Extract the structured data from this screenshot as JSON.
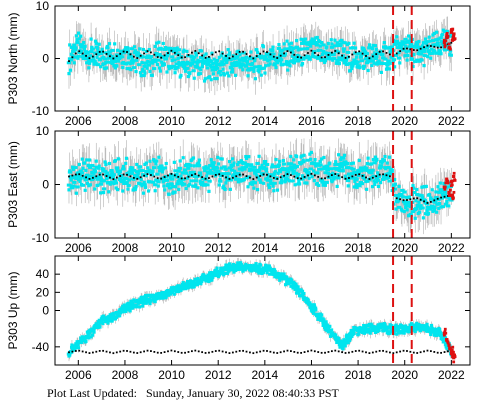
{
  "footer": {
    "label": "Plot Last Updated:",
    "timestamp": "Sunday, January 30, 2022 08:40:33 PST"
  },
  "colors": {
    "data": "#00e5ee",
    "error_bars": "#b0b0b0",
    "model": "#000000",
    "recent": "#dd1111",
    "event_lines": "#dd1111"
  },
  "chart_data": [
    {
      "type": "scatter",
      "ylabel": "P303 North (mm)",
      "xlim": [
        2005.0,
        2022.8
      ],
      "ylim": [
        -10,
        10
      ],
      "xticks": [
        2006,
        2008,
        2010,
        2012,
        2014,
        2016,
        2018,
        2020,
        2022
      ],
      "yticks": [
        -10,
        0,
        10
      ],
      "event_lines": [
        2019.5,
        2020.3
      ],
      "series": [
        {
          "x": [
            2005.6,
            2006.0,
            2006.5,
            2007.0,
            2007.5,
            2008.0,
            2008.5,
            2009.0,
            2009.5,
            2010.0,
            2010.5,
            2011.0,
            2011.5,
            2012.0,
            2012.5,
            2013.0,
            2013.5,
            2014.0,
            2014.5,
            2015.0,
            2015.5,
            2016.0,
            2016.5,
            2017.0,
            2017.5,
            2018.0,
            2018.5,
            2019.0,
            2019.5,
            2020.0,
            2020.5,
            2021.0,
            2021.5,
            2022.0
          ],
          "y": [
            0.0,
            2.0,
            1.0,
            0.0,
            1.0,
            1.0,
            -0.5,
            -1.0,
            0.5,
            0.0,
            -1.0,
            -1.0,
            -1.5,
            -2.0,
            -1.0,
            -0.5,
            -1.5,
            0.0,
            0.5,
            0.5,
            1.0,
            1.5,
            1.0,
            1.5,
            0.5,
            0.0,
            0.5,
            0.0,
            1.0,
            2.0,
            1.0,
            1.5,
            2.5,
            3.0
          ],
          "err": 3.2
        },
        {
          "x": [
            2005.6,
            2006.0,
            2006.5,
            2007.0,
            2007.5,
            2008.0,
            2008.5,
            2009.0,
            2009.5,
            2010.0,
            2010.5,
            2011.0,
            2011.5,
            2012.0,
            2012.5,
            2013.0,
            2013.5,
            2014.0,
            2014.5,
            2015.0,
            2015.5,
            2016.0,
            2016.5,
            2017.0,
            2017.5,
            2018.0,
            2018.5,
            2019.0,
            2019.5,
            2020.0,
            2020.5,
            2021.0,
            2021.5,
            2022.0
          ],
          "y": [
            -0.5,
            1.5,
            0.0,
            1.5,
            0.0,
            1.5,
            0.0,
            1.5,
            0.0,
            1.5,
            0.0,
            1.5,
            0.0,
            1.5,
            0.0,
            1.5,
            0.0,
            1.5,
            0.0,
            1.5,
            0.0,
            1.5,
            0.0,
            1.5,
            0.0,
            1.5,
            0.0,
            1.5,
            0.5,
            2.0,
            1.5,
            2.5,
            2.0,
            3.0
          ]
        },
        {
          "x": [
            2021.7,
            2021.8,
            2021.9,
            2022.0,
            2022.05,
            2022.1
          ],
          "y": [
            3.0,
            4.0,
            2.0,
            5.0,
            3.5,
            4.5
          ]
        }
      ]
    },
    {
      "type": "scatter",
      "ylabel": "P303 East (mm)",
      "xlim": [
        2005.0,
        2022.8
      ],
      "ylim": [
        -10,
        10
      ],
      "xticks": [
        2006,
        2008,
        2010,
        2012,
        2014,
        2016,
        2018,
        2020,
        2022
      ],
      "yticks": [
        -10,
        0,
        10
      ],
      "event_lines": [
        2019.5,
        2020.3
      ],
      "series": [
        {
          "x": [
            2005.6,
            2006.0,
            2006.5,
            2007.0,
            2007.5,
            2008.0,
            2008.5,
            2009.0,
            2009.5,
            2010.0,
            2010.5,
            2011.0,
            2011.5,
            2012.0,
            2012.5,
            2013.0,
            2013.5,
            2014.0,
            2014.5,
            2015.0,
            2015.5,
            2016.0,
            2016.5,
            2017.0,
            2017.5,
            2018.0,
            2018.5,
            2019.0,
            2019.4,
            2019.6,
            2020.0,
            2020.5,
            2021.0,
            2021.5,
            2022.0
          ],
          "y": [
            1.0,
            1.5,
            2.0,
            1.0,
            1.5,
            2.0,
            1.0,
            1.5,
            2.0,
            1.0,
            2.0,
            2.0,
            1.5,
            2.5,
            1.5,
            2.5,
            2.0,
            2.5,
            1.5,
            2.5,
            2.5,
            3.0,
            2.0,
            2.5,
            2.5,
            1.5,
            2.0,
            2.5,
            2.0,
            -2.5,
            -3.0,
            -3.5,
            -3.0,
            -2.5,
            -2.0
          ],
          "err": 3.5
        },
        {
          "x": [
            2005.6,
            2006.0,
            2006.5,
            2007.0,
            2007.5,
            2008.0,
            2008.5,
            2009.0,
            2009.5,
            2010.0,
            2010.5,
            2011.0,
            2011.5,
            2012.0,
            2012.5,
            2013.0,
            2013.5,
            2014.0,
            2014.5,
            2015.0,
            2015.5,
            2016.0,
            2016.5,
            2017.0,
            2017.5,
            2018.0,
            2018.5,
            2019.0,
            2019.4,
            2019.6,
            2020.0,
            2020.5,
            2021.0,
            2021.5,
            2022.0
          ],
          "y": [
            1.5,
            2.0,
            1.0,
            2.0,
            1.0,
            2.0,
            1.0,
            2.0,
            1.0,
            2.0,
            1.0,
            2.0,
            1.0,
            2.0,
            1.0,
            2.0,
            1.0,
            2.0,
            1.0,
            2.0,
            1.0,
            2.0,
            1.0,
            2.0,
            1.0,
            2.0,
            1.0,
            2.0,
            1.5,
            -2.5,
            -3.0,
            -2.5,
            -3.5,
            -2.5,
            -2.0
          ]
        },
        {
          "x": [
            2021.7,
            2021.8,
            2021.9,
            2022.0,
            2022.05,
            2022.1
          ],
          "y": [
            -0.5,
            1.0,
            -1.5,
            0.5,
            -2.0,
            1.5
          ]
        }
      ]
    },
    {
      "type": "scatter",
      "ylabel": "P303 Up (mm)",
      "xlim": [
        2005.0,
        2022.8
      ],
      "ylim": [
        -60,
        60
      ],
      "xticks": [
        2006,
        2008,
        2010,
        2012,
        2014,
        2016,
        2018,
        2020,
        2022
      ],
      "yticks": [
        -40,
        0,
        20,
        40
      ],
      "event_lines": [
        2019.5,
        2020.3
      ],
      "series": [
        {
          "x": [
            2005.6,
            2006.0,
            2006.5,
            2007.0,
            2007.5,
            2008.0,
            2008.5,
            2009.0,
            2009.5,
            2010.0,
            2010.5,
            2011.0,
            2011.5,
            2012.0,
            2012.5,
            2013.0,
            2013.5,
            2014.0,
            2014.5,
            2015.0,
            2015.5,
            2016.0,
            2016.5,
            2017.0,
            2017.3,
            2017.8,
            2018.5,
            2019.0,
            2019.5,
            2020.0,
            2020.5,
            2021.0,
            2021.5,
            2022.0
          ],
          "y": [
            -45.0,
            -38.0,
            -25.0,
            -12.0,
            -8.0,
            2.0,
            8.0,
            12.0,
            16.0,
            22.0,
            26.0,
            30.0,
            36.0,
            42.0,
            46.0,
            48.0,
            47.0,
            46.0,
            40.0,
            32.0,
            20.0,
            5.0,
            -12.0,
            -30.0,
            -40.0,
            -22.0,
            -20.0,
            -18.0,
            -22.0,
            -20.0,
            -18.0,
            -20.0,
            -25.0,
            -45.0
          ],
          "err": 6.0
        },
        {
          "x": [
            2005.6,
            2006.0,
            2006.5,
            2007.0,
            2007.5,
            2008.0,
            2008.5,
            2009.0,
            2009.5,
            2010.0,
            2010.5,
            2011.0,
            2011.5,
            2012.0,
            2012.5,
            2013.0,
            2013.5,
            2014.0,
            2014.5,
            2015.0,
            2015.5,
            2016.0,
            2016.5,
            2017.0,
            2017.5,
            2018.0,
            2018.5,
            2019.0,
            2019.5,
            2020.0,
            2020.5,
            2021.0,
            2021.5,
            2022.0
          ],
          "y": [
            -46.0,
            -44.0,
            -47.0,
            -44.0,
            -47.0,
            -44.0,
            -47.0,
            -44.0,
            -47.0,
            -44.0,
            -47.0,
            -44.0,
            -47.0,
            -44.0,
            -47.0,
            -44.0,
            -47.0,
            -44.0,
            -47.0,
            -44.0,
            -47.0,
            -44.0,
            -47.0,
            -44.0,
            -47.0,
            -44.0,
            -47.0,
            -44.0,
            -47.0,
            -44.0,
            -47.0,
            -44.0,
            -47.0,
            -44.0
          ]
        },
        {
          "x": [
            2021.7,
            2021.8,
            2021.9,
            2022.0,
            2022.05,
            2022.1
          ],
          "y": [
            -25.0,
            -32.0,
            -38.0,
            -45.0,
            -48.0,
            -52.0
          ]
        }
      ]
    }
  ]
}
